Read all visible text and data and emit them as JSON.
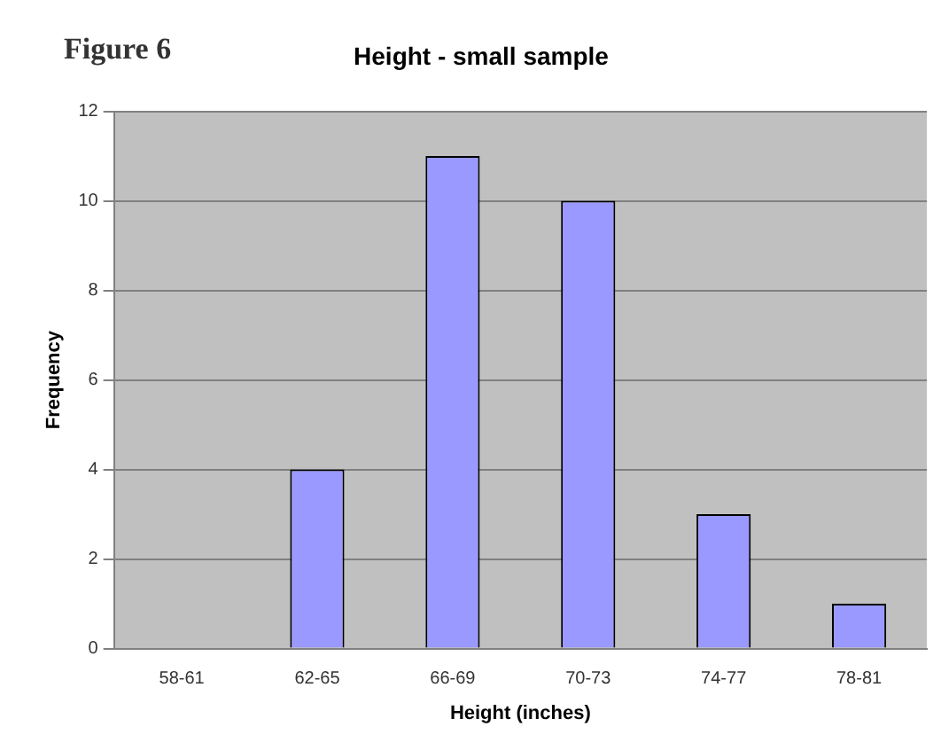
{
  "chart_data": {
    "type": "bar",
    "title": "Height - small sample",
    "xlabel": "Height (inches)",
    "ylabel": "Frequency",
    "annotations": [
      "Figure 6"
    ],
    "categories": [
      "58-61",
      "62-65",
      "66-69",
      "70-73",
      "74-77",
      "78-81"
    ],
    "values": [
      0,
      4,
      11,
      10,
      3,
      1
    ],
    "color": "#9999ff",
    "ylim": [
      0,
      12
    ],
    "yticks": [
      0,
      2,
      4,
      6,
      8,
      10,
      12
    ],
    "grid": "y",
    "legend": false
  }
}
